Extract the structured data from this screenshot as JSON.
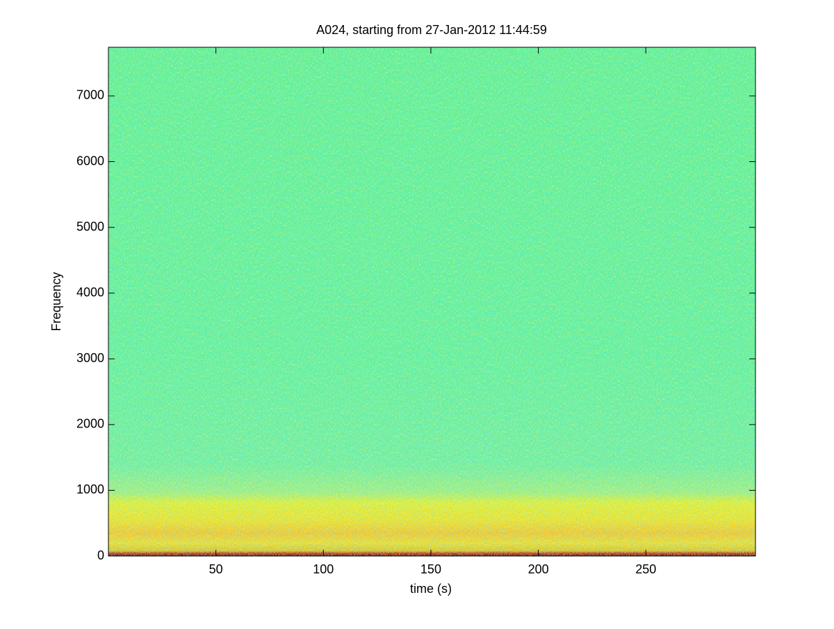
{
  "chart_data": {
    "type": "spectrogram",
    "title": "A024, starting from 27-Jan-2012 11:44:59",
    "x_label": "time (s)",
    "y_label": "Frequency",
    "xlim": [
      0,
      301
    ],
    "xticks": [
      50,
      100,
      150,
      200,
      250
    ],
    "ylim": [
      0,
      7740
    ],
    "yticks": [
      0,
      1000,
      2000,
      3000,
      4000,
      5000,
      6000,
      7000
    ],
    "colormap": "jet"
  }
}
